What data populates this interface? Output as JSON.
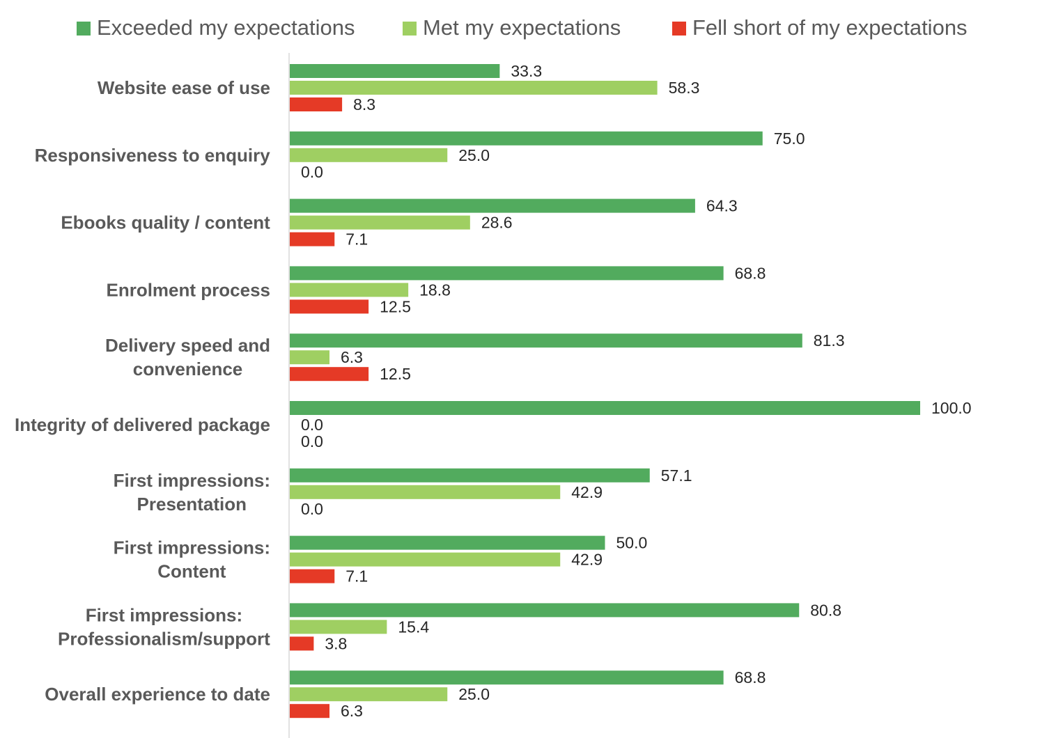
{
  "chart_data": {
    "type": "bar",
    "orientation": "horizontal",
    "categories": [
      [
        "Website ease of use"
      ],
      [
        "Responsiveness to enquiry"
      ],
      [
        "Ebooks quality / content"
      ],
      [
        "Enrolment process"
      ],
      [
        "Delivery speed and",
        "convenience"
      ],
      [
        "Integrity of delivered package"
      ],
      [
        "First impressions:",
        "Presentation"
      ],
      [
        "First impressions:",
        "Content"
      ],
      [
        "First impressions:",
        "Professionalism/support"
      ],
      [
        "Overall experience to date"
      ]
    ],
    "series": [
      {
        "name": "Exceeded my expectations",
        "color": "#52ab5e",
        "values": [
          33.3,
          75.0,
          64.3,
          68.8,
          81.3,
          100.0,
          57.1,
          50.0,
          80.8,
          68.8
        ]
      },
      {
        "name": "Met my expectations",
        "color": "#9fcf62",
        "values": [
          58.3,
          25.0,
          28.6,
          18.8,
          6.3,
          0.0,
          42.9,
          42.9,
          15.4,
          25.0
        ]
      },
      {
        "name": "Fell short of my expectations",
        "color": "#e53a26",
        "values": [
          8.3,
          0.0,
          7.1,
          12.5,
          12.5,
          0.0,
          0.0,
          7.1,
          3.8,
          6.3
        ]
      }
    ],
    "xlim": [
      0,
      100
    ],
    "grid": false,
    "legend_position": "top",
    "data_labels": true,
    "label_precision": 1
  }
}
